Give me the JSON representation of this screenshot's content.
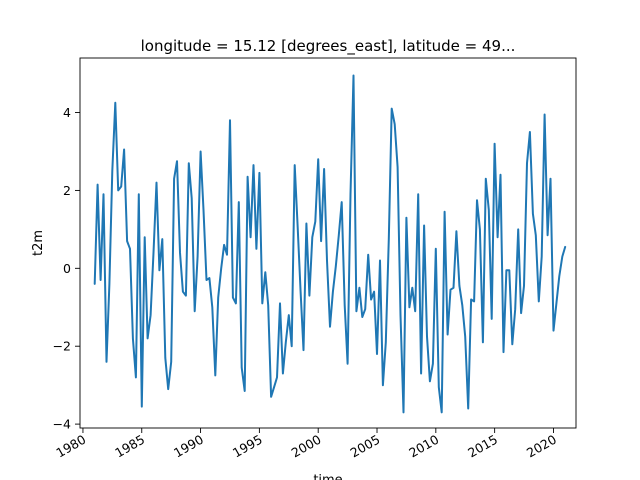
{
  "chart_data": {
    "type": "line",
    "title": "longitude = 15.12 [degrees_east], latitude = 49...",
    "xlabel": "time",
    "ylabel": "t2m",
    "x_ticks": [
      "1980",
      "1985",
      "1990",
      "1995",
      "2000",
      "2005",
      "2010",
      "2015",
      "2020"
    ],
    "y_ticks": [
      "−4",
      "−2",
      "0",
      "2",
      "4"
    ],
    "xlim": [
      "1979-10",
      "2021-12"
    ],
    "ylim": [
      -4.1,
      5.4
    ],
    "grid": false,
    "legend": "none",
    "series": [
      {
        "color": "#1f77b4",
        "x": [
          "1981-01",
          "1981-04",
          "1981-07",
          "1981-10",
          "1982-01",
          "1982-04",
          "1982-07",
          "1982-10",
          "1983-01",
          "1983-04",
          "1983-07",
          "1983-10",
          "1984-01",
          "1984-04",
          "1984-07",
          "1984-10",
          "1985-01",
          "1985-04",
          "1985-07",
          "1985-10",
          "1986-01",
          "1986-04",
          "1986-07",
          "1986-10",
          "1987-01",
          "1987-04",
          "1987-07",
          "1987-10",
          "1988-01",
          "1988-04",
          "1988-07",
          "1988-10",
          "1989-01",
          "1989-04",
          "1989-07",
          "1989-10",
          "1990-01",
          "1990-04",
          "1990-07",
          "1990-10",
          "1991-01",
          "1991-04",
          "1991-07",
          "1991-10",
          "1992-01",
          "1992-04",
          "1992-07",
          "1992-10",
          "1993-01",
          "1993-04",
          "1993-07",
          "1993-10",
          "1994-01",
          "1994-04",
          "1994-07",
          "1994-10",
          "1995-01",
          "1995-04",
          "1995-07",
          "1995-10",
          "1996-01",
          "1996-04",
          "1996-07",
          "1996-10",
          "1997-01",
          "1997-04",
          "1997-07",
          "1997-10",
          "1998-01",
          "1998-04",
          "1998-07",
          "1998-10",
          "1999-01",
          "1999-04",
          "1999-07",
          "1999-10",
          "2000-01",
          "2000-04",
          "2000-07",
          "2000-10",
          "2001-01",
          "2001-04",
          "2001-07",
          "2001-10",
          "2002-01",
          "2002-04",
          "2002-07",
          "2002-10",
          "2003-01",
          "2003-04",
          "2003-07",
          "2003-10",
          "2004-01",
          "2004-04",
          "2004-07",
          "2004-10",
          "2005-01",
          "2005-04",
          "2005-07",
          "2005-10",
          "2006-01",
          "2006-04",
          "2006-07",
          "2006-10",
          "2007-01",
          "2007-04",
          "2007-07",
          "2007-10",
          "2008-01",
          "2008-04",
          "2008-07",
          "2008-10",
          "2009-01",
          "2009-04",
          "2009-07",
          "2009-10",
          "2010-01",
          "2010-04",
          "2010-07",
          "2010-10",
          "2011-01",
          "2011-04",
          "2011-07",
          "2011-10",
          "2012-01",
          "2012-04",
          "2012-07",
          "2012-10",
          "2013-01",
          "2013-04",
          "2013-07",
          "2013-10",
          "2014-01",
          "2014-04",
          "2014-07",
          "2014-10",
          "2015-01",
          "2015-04",
          "2015-07",
          "2015-10",
          "2016-01",
          "2016-04",
          "2016-07",
          "2016-10",
          "2017-01",
          "2017-04",
          "2017-07",
          "2017-10",
          "2018-01",
          "2018-04",
          "2018-07",
          "2018-10",
          "2019-01",
          "2019-04",
          "2019-07",
          "2019-10",
          "2020-01",
          "2020-04",
          "2020-07",
          "2020-10",
          "2021-01"
        ],
        "values": [
          -0.4,
          2.15,
          -0.3,
          1.9,
          -2.4,
          -0.4,
          2.5,
          4.25,
          2.0,
          2.1,
          3.05,
          0.7,
          0.5,
          -1.8,
          -2.8,
          1.9,
          -3.55,
          0.8,
          -1.8,
          -1.2,
          0.4,
          2.2,
          -0.05,
          0.75,
          -2.3,
          -3.1,
          -2.4,
          2.3,
          2.75,
          0.4,
          -0.6,
          -0.7,
          2.7,
          1.8,
          -1.1,
          0.3,
          3.0,
          1.5,
          -0.3,
          -0.25,
          -1.0,
          -2.75,
          -0.75,
          0.0,
          0.6,
          0.35,
          3.8,
          -0.75,
          -0.9,
          1.7,
          -2.55,
          -3.15,
          2.35,
          0.8,
          2.65,
          0.5,
          2.45,
          -0.9,
          -0.1,
          -0.95,
          -3.3,
          -3.05,
          -2.8,
          -0.9,
          -2.7,
          -1.9,
          -1.2,
          -2.0,
          2.65,
          1.1,
          -0.6,
          -2.1,
          1.15,
          -0.7,
          0.8,
          1.2,
          2.8,
          0.7,
          2.55,
          0.2,
          -1.5,
          -0.6,
          0.05,
          0.85,
          1.7,
          -0.95,
          -2.45,
          1.9,
          4.95,
          -1.1,
          -0.5,
          -1.25,
          -1.05,
          0.35,
          -0.8,
          -0.6,
          -2.2,
          0.2,
          -3.0,
          -1.9,
          0.75,
          4.1,
          3.7,
          2.6,
          -1.2,
          -3.7,
          1.3,
          -1.0,
          -0.5,
          -1.1,
          1.9,
          -2.7,
          1.1,
          -1.75,
          -2.9,
          -2.45,
          0.5,
          -3.05,
          -3.7,
          1.45,
          -1.7,
          -0.55,
          -0.5,
          0.95,
          -0.45,
          -0.95,
          -1.75,
          -3.6,
          -0.8,
          -0.85,
          1.75,
          1.0,
          -1.9,
          2.3,
          1.5,
          -1.3,
          3.2,
          0.8,
          2.4,
          -2.15,
          -0.05,
          -0.05,
          -1.95,
          -1.05,
          1.0,
          -1.15,
          -0.45,
          2.7,
          3.5,
          1.4,
          0.85,
          -0.85,
          0.3,
          3.95,
          0.85,
          2.3,
          -1.6,
          -0.9,
          -0.2,
          0.3,
          0.55
        ]
      }
    ]
  }
}
